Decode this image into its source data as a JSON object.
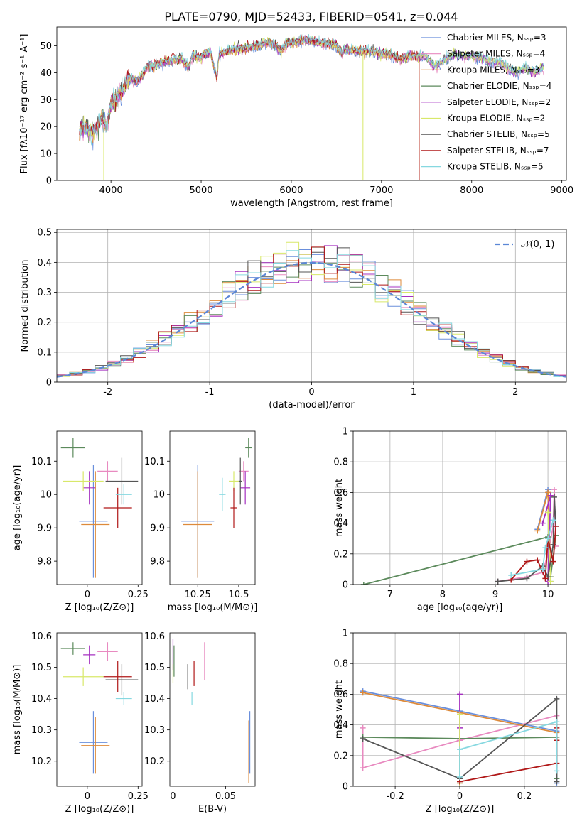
{
  "figure_title": "PLATE=0790, MJD=52433, FIBERID=0541, z=0.044",
  "legend_names": [
    "Chabrier MILES, Nₛₛₚ=3",
    "Salpeter MILES, Nₛₛₚ=4",
    "Kroupa MILES, Nₛₛₚ=3",
    "Chabrier ELODIE, Nₛₛₚ=4",
    "Salpeter ELODIE, Nₛₛₚ=2",
    "Kroupa ELODIE, Nₛₛₚ=2",
    "Chabrier STELIB, Nₛₛₚ=5",
    "Salpeter STELIB, Nₛₛₚ=7",
    "Kroupa STELIB, Nₛₛₚ=5"
  ],
  "colors": [
    "#6a8fdc",
    "#e88ac0",
    "#dd8a3a",
    "#5c8a5c",
    "#a530c0",
    "#d8e86a",
    "#555555",
    "#b01818",
    "#86d8e0"
  ],
  "chart_data": [
    {
      "id": "spectrum",
      "type": "line",
      "xlabel": "wavelength [Angstrom, rest frame]",
      "ylabel": "Flux [fλ10⁻¹⁷ erg cm⁻² s⁻¹ A⁻¹]",
      "xlim": [
        3400,
        9050
      ],
      "ylim": [
        0,
        57
      ],
      "xticks": [
        4000,
        5000,
        6000,
        7000,
        8000,
        9000
      ],
      "yticks": [
        0,
        10,
        20,
        30,
        40,
        50
      ],
      "x": [
        3650,
        3700,
        3800,
        3900,
        3950,
        4000,
        4100,
        4200,
        4300,
        4400,
        4500,
        4600,
        4700,
        4800,
        4860,
        4900,
        5000,
        5100,
        5175,
        5200,
        5300,
        5400,
        5500,
        5600,
        5700,
        5800,
        5890,
        5950,
        6000,
        6100,
        6200,
        6300,
        6400,
        6500,
        6563,
        6600,
        6700,
        6800,
        6900,
        7000,
        7100,
        7200,
        7300,
        7400,
        7500,
        7600,
        7700,
        7800,
        7900,
        8000,
        8100,
        8200,
        8300,
        8400,
        8500,
        8600,
        8700,
        8800
      ],
      "y": [
        18,
        20,
        17,
        24,
        20,
        28,
        32,
        38,
        37,
        42,
        43,
        44,
        45,
        45,
        42,
        46,
        46,
        48,
        38,
        47,
        48,
        49,
        49,
        50,
        51,
        51,
        48,
        51,
        51,
        52,
        52,
        51,
        51,
        50,
        47,
        49,
        48,
        48,
        48,
        47,
        47,
        45,
        46,
        46,
        46,
        42,
        45,
        47,
        46,
        46,
        46,
        44,
        44,
        42,
        40,
        42,
        40,
        42
      ],
      "legend_position": "upper right",
      "grid": false
    },
    {
      "id": "residuals",
      "type": "histogram",
      "xlabel": "(data-model)/error",
      "ylabel": "Normed distribution",
      "xlim": [
        -2.5,
        2.5
      ],
      "ylim": [
        0,
        0.51
      ],
      "xticks": [
        -2,
        -1,
        0,
        1,
        2
      ],
      "yticks": [
        0.0,
        0.1,
        0.2,
        0.3,
        0.4,
        0.5
      ],
      "bin_width": 0.125,
      "bin_start": -2.5,
      "reference_curve": "𝒩(0, 1)",
      "legend_position": "upper right",
      "grid": true
    },
    {
      "id": "age_vs_Z",
      "type": "scatter_errorbar",
      "xlabel": "Z [log₁₀(Z/Z⊙)]",
      "ylabel": "age  [log₁₀(age/yr)]",
      "xlim": [
        -0.15,
        0.27
      ],
      "ylim": [
        9.73,
        10.19
      ],
      "xticks": [
        0.0,
        0.25
      ],
      "yticks": [
        9.8,
        9.9,
        10.0,
        10.1
      ],
      "points": [
        {
          "x": 0.03,
          "y": 9.92,
          "xerr": 0.07,
          "yerr": 0.17
        },
        {
          "x": 0.1,
          "y": 10.07,
          "xerr": 0.05,
          "yerr": 0.03
        },
        {
          "x": 0.04,
          "y": 9.91,
          "xerr": 0.07,
          "yerr": 0.16
        },
        {
          "x": -0.07,
          "y": 10.14,
          "xerr": 0.06,
          "yerr": 0.03
        },
        {
          "x": 0.01,
          "y": 10.02,
          "xerr": 0.03,
          "yerr": 0.05
        },
        {
          "x": -0.02,
          "y": 10.04,
          "xerr": 0.1,
          "yerr": 0.03
        },
        {
          "x": 0.17,
          "y": 10.04,
          "xerr": 0.08,
          "yerr": 0.07
        },
        {
          "x": 0.15,
          "y": 9.96,
          "xerr": 0.07,
          "yerr": 0.06
        },
        {
          "x": 0.18,
          "y": 10.0,
          "xerr": 0.04,
          "yerr": 0.03
        }
      ]
    },
    {
      "id": "age_vs_mass",
      "type": "scatter_errorbar",
      "xlabel": "mass [log₁₀(M/M⊙)]",
      "ylabel": "",
      "xlim": [
        10.08,
        10.6
      ],
      "ylim": [
        9.73,
        10.19
      ],
      "xticks": [
        10.25,
        10.5
      ],
      "yticks": [
        9.8,
        9.9,
        10.0,
        10.1
      ],
      "points": [
        {
          "x": 10.25,
          "y": 9.92,
          "xerr": 0.1,
          "yerr": 0.17
        },
        {
          "x": 10.53,
          "y": 10.07,
          "xerr": 0.03,
          "yerr": 0.03
        },
        {
          "x": 10.25,
          "y": 9.91,
          "xerr": 0.09,
          "yerr": 0.16
        },
        {
          "x": 10.56,
          "y": 10.14,
          "xerr": 0.02,
          "yerr": 0.03
        },
        {
          "x": 10.54,
          "y": 10.02,
          "xerr": 0.03,
          "yerr": 0.05
        },
        {
          "x": 10.47,
          "y": 10.04,
          "xerr": 0.03,
          "yerr": 0.03
        },
        {
          "x": 10.51,
          "y": 10.04,
          "xerr": 0.01,
          "yerr": 0.07
        },
        {
          "x": 10.47,
          "y": 9.96,
          "xerr": 0.02,
          "yerr": 0.06
        },
        {
          "x": 10.4,
          "y": 10.0,
          "xerr": 0.02,
          "yerr": 0.05
        }
      ]
    },
    {
      "id": "weight_vs_age",
      "type": "line",
      "xlabel": "age  [log₁₀(age/yr)]",
      "ylabel": "mass weight",
      "xlim": [
        6.3,
        10.35
      ],
      "ylim": [
        0.0,
        1.0
      ],
      "xticks": [
        7,
        8,
        9,
        10
      ],
      "yticks": [
        0.0,
        0.2,
        0.4,
        0.6,
        0.8,
        1.0
      ],
      "grid": true,
      "series": [
        {
          "x": [
            9.8,
            10.0,
            10.05
          ],
          "y": [
            0.36,
            0.62,
            0.02
          ]
        },
        {
          "x": [
            9.05,
            9.6,
            9.9,
            10.0,
            10.1,
            10.12,
            10.15
          ],
          "y": [
            0.02,
            0.05,
            0.08,
            0.2,
            0.38,
            0.62,
            0.25
          ]
        },
        {
          "x": [
            9.8,
            10.0,
            10.05
          ],
          "y": [
            0.35,
            0.6,
            0.05
          ]
        },
        {
          "x": [
            6.5,
            10.0,
            10.05,
            10.15
          ],
          "y": [
            0.0,
            0.31,
            0.05,
            0.32
          ]
        },
        {
          "x": [
            9.9,
            10.05,
            10.0
          ],
          "y": [
            0.4,
            0.58,
            0.02
          ]
        },
        {
          "x": [
            10.0,
            10.05
          ],
          "y": [
            0.47,
            0.02
          ]
        },
        {
          "x": [
            9.05,
            9.6,
            9.9,
            10.0,
            10.1,
            10.12,
            10.15
          ],
          "y": [
            0.02,
            0.04,
            0.12,
            0.05,
            0.26,
            0.57,
            0.38
          ]
        },
        {
          "x": [
            9.3,
            9.6,
            9.8,
            9.95,
            10.0,
            10.1,
            10.15
          ],
          "y": [
            0.03,
            0.15,
            0.16,
            0.04,
            0.3,
            0.15,
            0.38
          ]
        },
        {
          "x": [
            9.3,
            9.9,
            9.95,
            10.0,
            10.1
          ],
          "y": [
            0.06,
            0.1,
            0.24,
            0.3,
            0.42
          ]
        }
      ]
    },
    {
      "id": "mass_vs_Z",
      "type": "scatter_errorbar",
      "xlabel": "Z [log₁₀(Z/Z⊙)]",
      "ylabel": "mass [log₁₀(M/M⊙)]",
      "xlim": [
        -0.15,
        0.27
      ],
      "ylim": [
        10.12,
        10.61
      ],
      "xticks": [
        0.0,
        0.25
      ],
      "yticks": [
        10.2,
        10.3,
        10.4,
        10.5,
        10.6
      ],
      "points": [
        {
          "x": 0.03,
          "y": 10.26,
          "xerr": 0.07,
          "yerr": 0.1
        },
        {
          "x": 0.1,
          "y": 10.55,
          "xerr": 0.05,
          "yerr": 0.03
        },
        {
          "x": 0.04,
          "y": 10.25,
          "xerr": 0.07,
          "yerr": 0.09
        },
        {
          "x": -0.07,
          "y": 10.56,
          "xerr": 0.06,
          "yerr": 0.02
        },
        {
          "x": 0.01,
          "y": 10.54,
          "xerr": 0.03,
          "yerr": 0.03
        },
        {
          "x": -0.02,
          "y": 10.47,
          "xerr": 0.1,
          "yerr": 0.03
        },
        {
          "x": 0.17,
          "y": 10.46,
          "xerr": 0.08,
          "yerr": 0.05
        },
        {
          "x": 0.15,
          "y": 10.47,
          "xerr": 0.07,
          "yerr": 0.05
        },
        {
          "x": 0.18,
          "y": 10.4,
          "xerr": 0.04,
          "yerr": 0.02
        }
      ]
    },
    {
      "id": "mass_vs_EBV",
      "type": "scatter_errorbar",
      "xlabel": "E(B-V)",
      "ylabel": "",
      "xlim": [
        -0.003,
        0.078
      ],
      "ylim": [
        10.12,
        10.61
      ],
      "xticks": [
        0.0,
        0.05
      ],
      "yticks": [
        10.2,
        10.3,
        10.4,
        10.5,
        10.6
      ],
      "points": [
        {
          "x": 0.073,
          "y": 10.26,
          "xerr": 0,
          "yerr": 0.1
        },
        {
          "x": 0.03,
          "y": 10.52,
          "xerr": 0,
          "yerr": 0.06
        },
        {
          "x": 0.072,
          "y": 10.23,
          "xerr": 0,
          "yerr": 0.1
        },
        {
          "x": 0.001,
          "y": 10.52,
          "xerr": 0,
          "yerr": 0.05
        },
        {
          "x": 0.0,
          "y": 10.54,
          "xerr": 0,
          "yerr": 0.05
        },
        {
          "x": 0.0,
          "y": 10.48,
          "xerr": 0,
          "yerr": 0.03
        },
        {
          "x": 0.014,
          "y": 10.47,
          "xerr": 0,
          "yerr": 0.04
        },
        {
          "x": 0.02,
          "y": 10.48,
          "xerr": 0,
          "yerr": 0.04
        },
        {
          "x": 0.018,
          "y": 10.4,
          "xerr": 0,
          "yerr": 0.02
        }
      ]
    },
    {
      "id": "weight_vs_Z",
      "type": "line",
      "xlabel": "Z [log₁₀(Z/Z⊙)]",
      "ylabel": "mass weight",
      "xlim": [
        -0.33,
        0.33
      ],
      "ylim": [
        0.0,
        1.0
      ],
      "xticks": [
        -0.2,
        0.0,
        0.2
      ],
      "yticks": [
        0.0,
        0.2,
        0.4,
        0.6,
        0.8,
        1.0
      ],
      "grid": true,
      "series": [
        {
          "x": [
            -0.3,
            0.0,
            0.3,
            0.3
          ],
          "y": [
            0.62,
            0.49,
            0.36,
            0.02
          ]
        },
        {
          "x": [
            -0.3,
            -0.3,
            0.0,
            0.3
          ],
          "y": [
            0.38,
            0.12,
            0.3,
            0.46
          ]
        },
        {
          "x": [
            -0.3,
            0.0,
            0.3
          ],
          "y": [
            0.61,
            0.48,
            0.35
          ]
        },
        {
          "x": [
            -0.3,
            0.0,
            0.3,
            0.3
          ],
          "y": [
            0.32,
            0.31,
            0.32,
            0.05
          ]
        },
        {
          "x": [
            0.0,
            0.0,
            0.0
          ],
          "y": [
            0.6,
            0.38,
            0.02
          ]
        },
        {
          "x": [
            0.0,
            0.0
          ],
          "y": [
            0.47,
            0.02
          ]
        },
        {
          "x": [
            -0.3,
            0.0,
            0.3,
            0.3
          ],
          "y": [
            0.31,
            0.05,
            0.57,
            0.03
          ]
        },
        {
          "x": [
            0.0,
            0.3,
            0.3,
            0.3
          ],
          "y": [
            0.03,
            0.15,
            0.3,
            0.38
          ]
        },
        {
          "x": [
            0.0,
            0.0,
            0.3,
            0.3
          ],
          "y": [
            0.06,
            0.24,
            0.42,
            0.1
          ]
        }
      ]
    }
  ]
}
